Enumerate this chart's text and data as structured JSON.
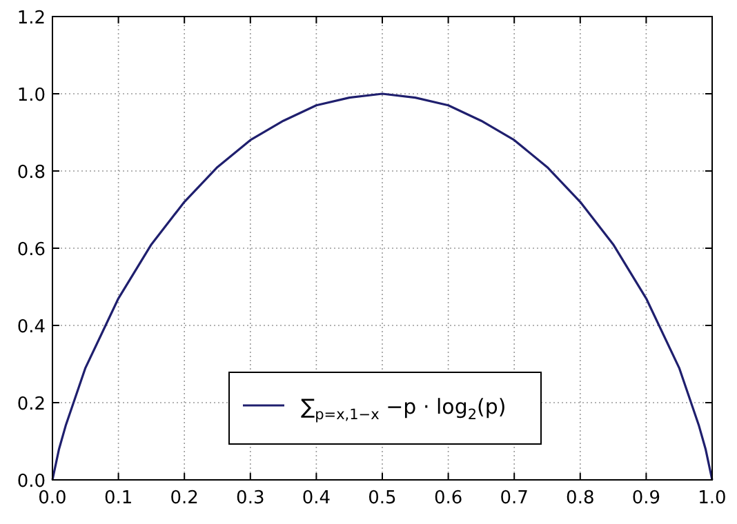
{
  "chart_data": {
    "type": "line",
    "x": [
      0,
      0.01,
      0.02,
      0.05,
      0.1,
      0.15,
      0.2,
      0.25,
      0.3,
      0.35,
      0.4,
      0.45,
      0.5,
      0.55,
      0.6,
      0.65,
      0.7,
      0.75,
      0.8,
      0.85,
      0.9,
      0.95,
      0.98,
      0.99,
      1
    ],
    "series": [
      {
        "name": "∑$_{p=x,1−x}$ −p · log$_{2}$(p)",
        "color": "#1f1f6e",
        "values": [
          0,
          0.08,
          0.14,
          0.29,
          0.47,
          0.61,
          0.72,
          0.81,
          0.88,
          0.93,
          0.97,
          0.99,
          1,
          0.99,
          0.97,
          0.93,
          0.88,
          0.81,
          0.72,
          0.61,
          0.47,
          0.29,
          0.14,
          0.08,
          0
        ]
      }
    ],
    "xlim": [
      0,
      1
    ],
    "xticks": [
      {
        "value": 0,
        "label": "0.0"
      },
      0.1,
      0.2,
      0.3,
      0.4,
      0.5,
      0.6,
      0.7,
      0.8,
      0.9,
      {
        "value": 1,
        "label": "1.0"
      }
    ],
    "ylim": [
      0,
      1.2
    ],
    "yticks": [
      {
        "value": 0,
        "label": "0.0"
      },
      0.2,
      0.4,
      0.6,
      0.8,
      {
        "value": 1,
        "label": "1.0"
      },
      {
        "value": 1.2,
        "label": "1.2"
      }
    ],
    "grid": true,
    "legend": "bottom",
    "line_style": "solid",
    "marker": "none"
  }
}
